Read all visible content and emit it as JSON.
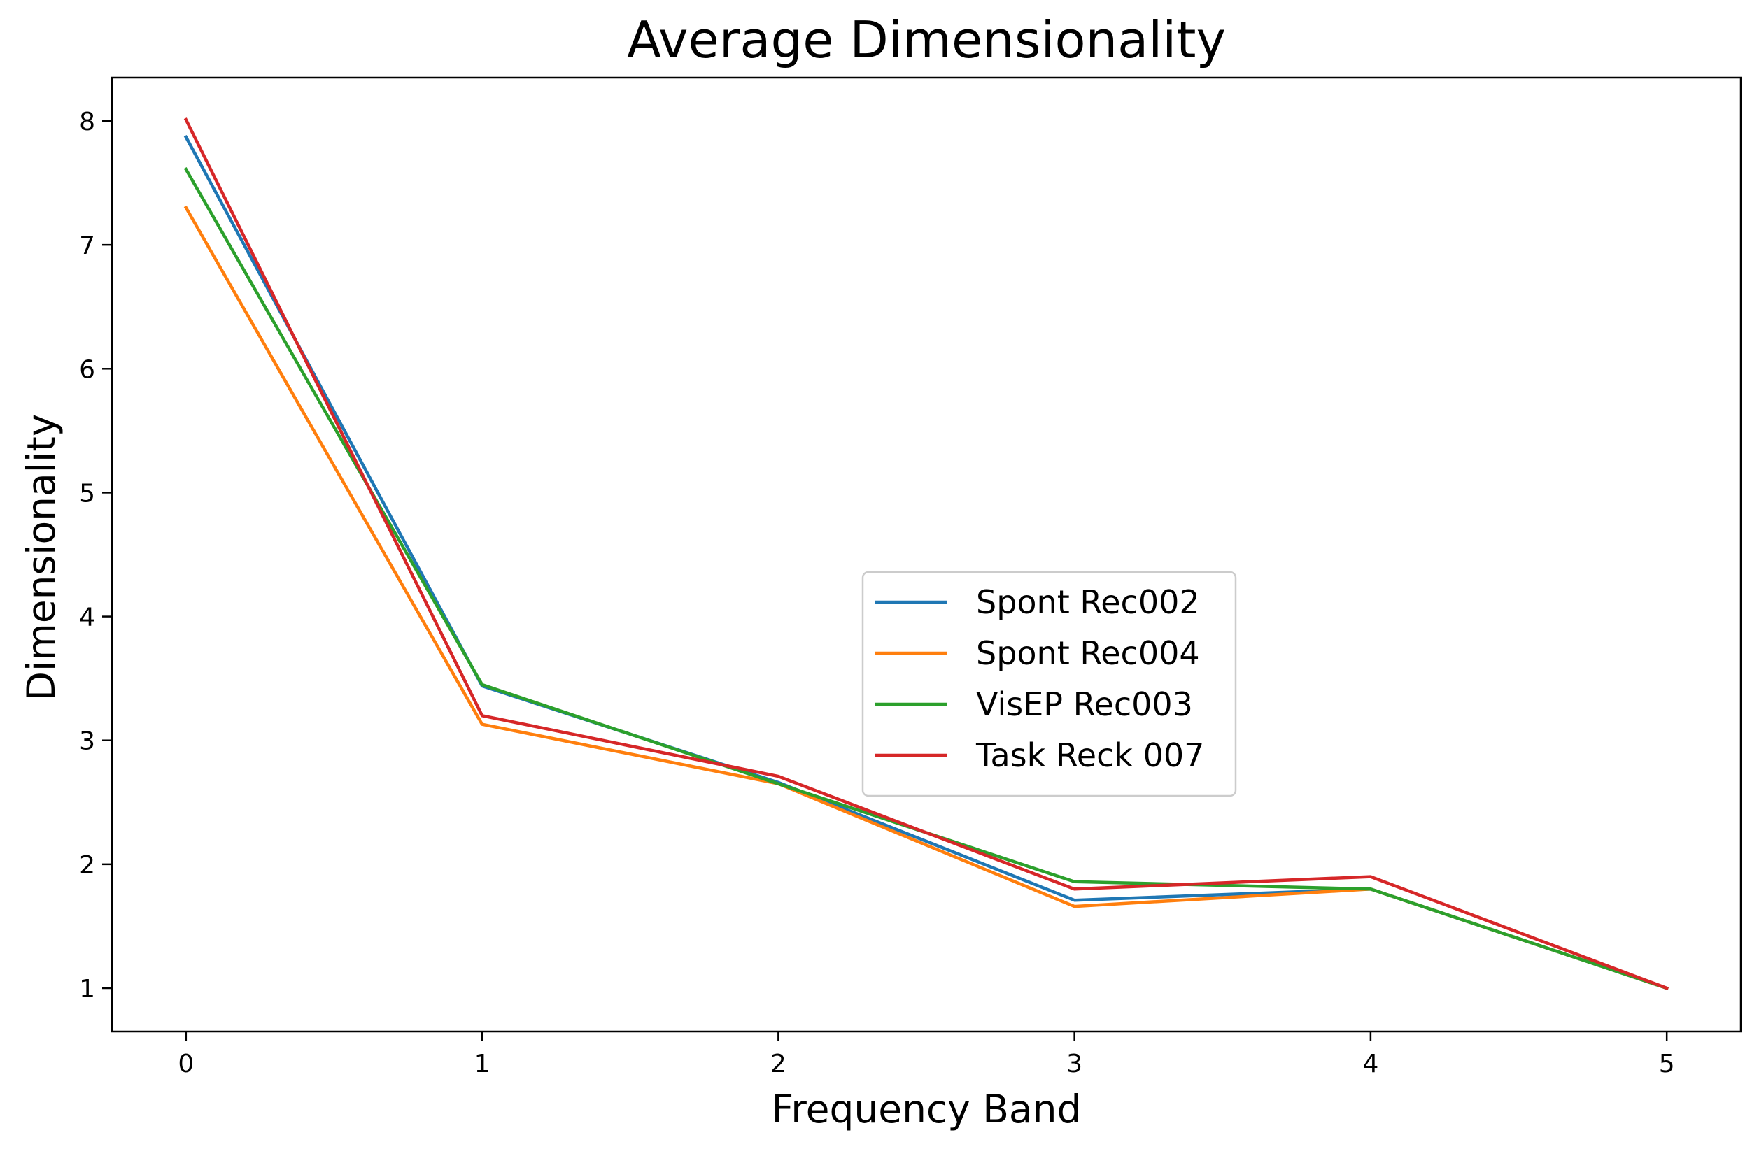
{
  "chart_data": {
    "type": "line",
    "title": "Average Dimensionality",
    "xlabel": "Frequency Band",
    "ylabel": "Dimensionality",
    "x": [
      0,
      1,
      2,
      3,
      4,
      5
    ],
    "xticks": [
      "0",
      "1",
      "2",
      "3",
      "4",
      "5"
    ],
    "yticks": [
      "1",
      "2",
      "3",
      "4",
      "5",
      "6",
      "7",
      "8"
    ],
    "xlim": [
      -0.25,
      5.25
    ],
    "ylim": [
      0.65,
      8.35
    ],
    "grid": false,
    "legend_position": "center-right",
    "series": [
      {
        "name": "Spont Rec002",
        "color": "#1f77b4",
        "values": [
          7.87,
          3.44,
          2.66,
          1.71,
          1.8,
          1.0
        ]
      },
      {
        "name": "Spont Rec004",
        "color": "#ff7f0e",
        "values": [
          7.3,
          3.13,
          2.65,
          1.66,
          1.8,
          1.0
        ]
      },
      {
        "name": "VisEP Rec003",
        "color": "#2ca02c",
        "values": [
          7.61,
          3.45,
          2.65,
          1.86,
          1.8,
          1.0
        ]
      },
      {
        "name": "Task Reck 007",
        "color": "#d62728",
        "values": [
          8.01,
          3.2,
          2.71,
          1.8,
          1.9,
          1.0
        ]
      }
    ]
  }
}
